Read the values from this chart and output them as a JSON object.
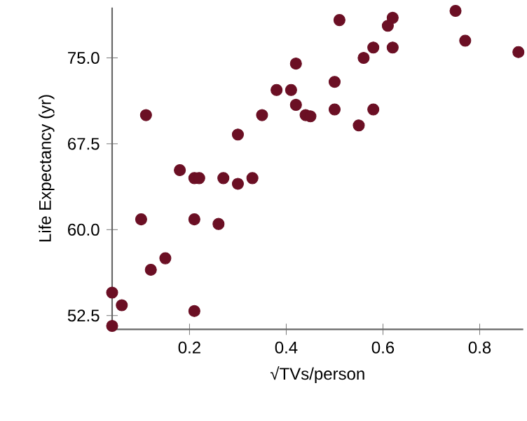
{
  "chart_data": {
    "type": "scatter",
    "xlabel": "√TVs/person",
    "ylabel": "Life Expectancy (yr)",
    "xlim": [
      0.04,
      0.89
    ],
    "ylim": [
      51.3,
      79.4
    ],
    "xticks": [
      0.2,
      0.4,
      0.6,
      0.8
    ],
    "yticks": [
      {
        "value": 52.5,
        "label": "52.5"
      },
      {
        "value": 60,
        "label": "60.0"
      },
      {
        "value": 67.5,
        "label": "67.5"
      },
      {
        "value": 75,
        "label": "75.0"
      }
    ],
    "marker": "circle",
    "grid": false,
    "series": [
      {
        "color": "#6b0f24",
        "x": [
          0.1,
          0.21,
          0.26,
          0.15,
          0.12,
          0.04,
          0.06,
          0.21,
          0.04,
          0.11,
          0.18,
          0.21,
          0.22,
          0.27,
          0.3,
          0.33,
          0.3,
          0.35,
          0.38,
          0.41,
          0.51,
          0.62,
          0.61,
          0.75,
          0.77,
          0.88,
          0.62,
          0.58,
          0.56,
          0.42,
          0.5,
          0.42,
          0.44,
          0.45,
          0.5,
          0.58,
          0.55
        ],
        "values": [
          60.9,
          60.9,
          60.5,
          57.5,
          56.5,
          54.5,
          53.4,
          52.9,
          51.6,
          70.0,
          65.2,
          64.5,
          64.5,
          64.5,
          64.0,
          64.5,
          68.3,
          70.0,
          72.2,
          72.2,
          78.3,
          78.5,
          77.8,
          79.1,
          76.5,
          75.5,
          75.9,
          75.9,
          75.0,
          74.5,
          72.9,
          70.9,
          70.0,
          69.9,
          70.5,
          70.5,
          69.1
        ]
      }
    ]
  }
}
